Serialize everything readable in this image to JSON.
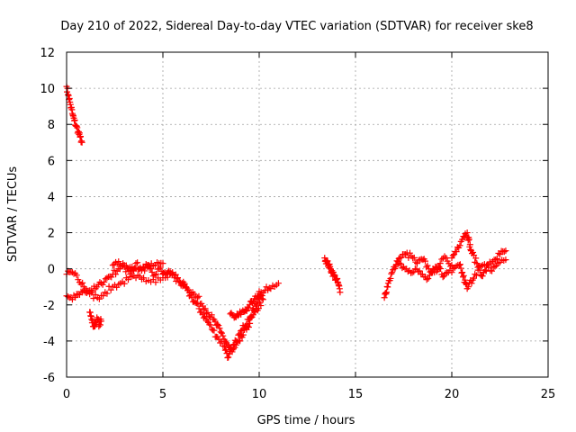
{
  "chart_data": {
    "type": "scatter",
    "title": "Day 210 of 2022, Sidereal Day-to-day VTEC variation (SDTVAR) for receiver ske8",
    "xlabel": "GPS time / hours",
    "ylabel": "SDTVAR / TECUs",
    "xlim": [
      0,
      25
    ],
    "ylim": [
      -6,
      12
    ],
    "xticks": [
      0,
      5,
      10,
      15,
      20,
      25
    ],
    "yticks": [
      -6,
      -4,
      -2,
      0,
      2,
      4,
      6,
      8,
      10,
      12
    ],
    "grid": true,
    "marker": "+",
    "color": "#ff0000",
    "series": [
      {
        "name": "SDTVAR",
        "segments": [
          {
            "x": [
              0.0,
              0.1,
              0.2,
              0.3,
              0.4,
              0.5,
              0.6,
              0.7,
              0.8
            ],
            "y": [
              10.1,
              9.6,
              9.1,
              8.6,
              8.2,
              7.9,
              7.6,
              7.3,
              7.0
            ]
          },
          {
            "x": [
              0.0,
              0.3,
              0.6,
              0.9,
              1.2,
              1.5,
              1.8,
              2.1,
              2.4,
              2.7,
              3.0,
              3.4,
              3.8,
              4.2,
              4.6,
              5.0
            ],
            "y": [
              -0.3,
              -0.2,
              -0.6,
              -1.0,
              -1.2,
              -1.1,
              -0.8,
              -0.5,
              -0.3,
              0.0,
              0.2,
              0.1,
              0.0,
              0.1,
              0.2,
              0.3
            ]
          },
          {
            "x": [
              0.0,
              0.3,
              0.6,
              0.9,
              1.2,
              1.6,
              2.0,
              2.4,
              2.8,
              3.2,
              3.6,
              4.0,
              4.5,
              5.0
            ],
            "y": [
              -1.5,
              -1.7,
              -1.4,
              -1.2,
              -1.4,
              -1.6,
              -1.3,
              -1.0,
              -0.8,
              -0.6,
              -0.5,
              -0.5,
              -0.6,
              -0.5
            ]
          },
          {
            "x": [
              1.2,
              1.3,
              1.4,
              1.5,
              1.6,
              1.7,
              1.8
            ],
            "y": [
              -2.4,
              -2.8,
              -3.2,
              -3.0,
              -2.8,
              -3.1,
              -2.9
            ]
          },
          {
            "x": [
              2.4,
              2.7,
              3.0,
              3.3,
              3.6,
              3.9,
              4.2,
              4.5,
              4.8,
              5.1,
              5.5
            ],
            "y": [
              0.2,
              0.4,
              0.1,
              -0.3,
              0.3,
              -0.1,
              0.2,
              -0.4,
              0.0,
              -0.2,
              -0.3
            ]
          },
          {
            "x": [
              5.0,
              5.5,
              6.0,
              6.5,
              7.0,
              7.3,
              7.6,
              7.9,
              8.2,
              8.4,
              8.6,
              8.8,
              9.1,
              9.4,
              9.7,
              10.0,
              10.3,
              10.6,
              11.0
            ],
            "y": [
              -0.3,
              -0.2,
              -0.8,
              -1.6,
              -2.4,
              -2.9,
              -3.4,
              -3.9,
              -4.3,
              -4.9,
              -4.5,
              -4.0,
              -3.4,
              -2.8,
              -2.2,
              -1.6,
              -1.2,
              -1.1,
              -0.8
            ]
          },
          {
            "x": [
              5.0,
              5.6,
              6.2,
              6.8,
              7.2,
              7.6,
              8.0,
              8.3,
              8.6,
              9.0,
              9.4,
              9.8,
              10.2
            ],
            "y": [
              -0.3,
              -0.5,
              -1.0,
              -1.6,
              -2.2,
              -2.8,
              -3.5,
              -4.1,
              -4.6,
              -4.0,
              -3.2,
              -2.4,
              -1.7
            ]
          },
          {
            "x": [
              8.5,
              8.7,
              8.9,
              9.1,
              9.3,
              9.5,
              9.7,
              9.9,
              10.1
            ],
            "y": [
              -2.5,
              -2.7,
              -2.6,
              -2.4,
              -2.3,
              -2.0,
              -1.8,
              -1.5,
              -1.3
            ]
          },
          {
            "x": [
              13.4,
              13.5,
              13.6,
              13.7,
              13.8,
              13.9,
              14.0,
              14.1,
              14.2
            ],
            "y": [
              0.6,
              0.4,
              0.2,
              0.0,
              -0.2,
              -0.4,
              -0.6,
              -0.8,
              -1.3
            ]
          },
          {
            "x": [
              16.5,
              16.7,
              16.9,
              17.1,
              17.3,
              17.6,
              17.9,
              18.2,
              18.5,
              18.8,
              19.1,
              19.4,
              19.7,
              20.0
            ],
            "y": [
              -1.6,
              -0.8,
              -0.2,
              0.2,
              0.6,
              0.8,
              0.7,
              0.3,
              0.5,
              0.0,
              -0.2,
              0.3,
              0.6,
              0.2
            ]
          },
          {
            "x": [
              17.2,
              17.5,
              17.8,
              18.1,
              18.4,
              18.7,
              19.0,
              19.3,
              19.6,
              19.9
            ],
            "y": [
              0.4,
              0.1,
              -0.1,
              0.0,
              -0.3,
              -0.6,
              -0.2,
              0.1,
              -0.4,
              -0.1
            ]
          },
          {
            "x": [
              20.0,
              20.3,
              20.6,
              20.8,
              21.0,
              21.3,
              21.6,
              21.9,
              22.2,
              22.5,
              22.8
            ],
            "y": [
              0.6,
              1.2,
              1.8,
              2.0,
              1.0,
              0.3,
              -0.4,
              0.2,
              0.5,
              0.8,
              1.0
            ]
          },
          {
            "x": [
              20.0,
              20.4,
              20.8,
              21.2,
              21.6,
              22.0,
              22.4,
              22.8
            ],
            "y": [
              -0.2,
              0.2,
              -1.1,
              -0.3,
              0.2,
              -0.1,
              0.3,
              0.5
            ]
          }
        ]
      }
    ]
  }
}
